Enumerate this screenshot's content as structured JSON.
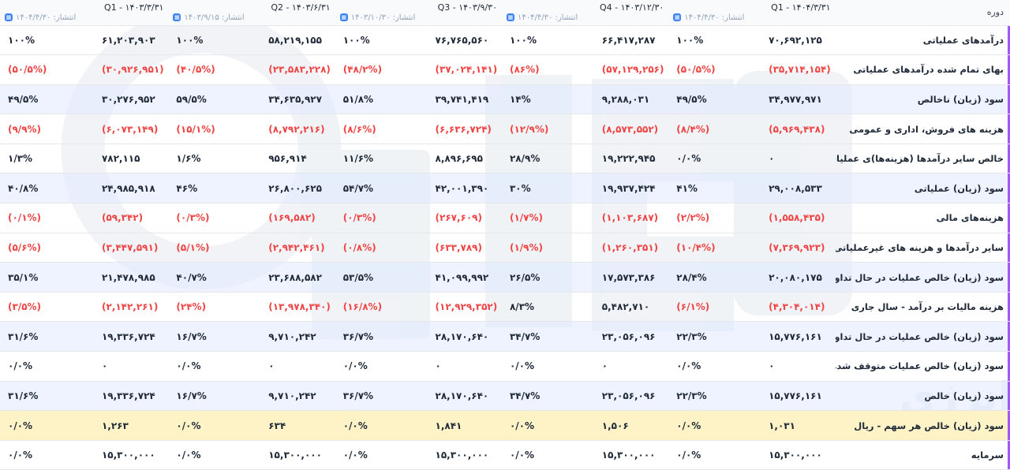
{
  "table": {
    "header_label": "دوره",
    "periods": [
      {
        "title": "Q1 - ۱۴۰۴/۳/۳۱",
        "published": "انتشار: ۱۴۰۴/۴/۳۰"
      },
      {
        "title": "Q4 - ۱۴۰۳/۱۲/۳۰",
        "published": "انتشار: ۱۴۰۴/۴/۳۰"
      },
      {
        "title": "Q3 - ۱۴۰۳/۹/۳۰",
        "published": "انتشار: ۱۴۰۳/۱۰/۳۰"
      },
      {
        "title": "Q2 - ۱۴۰۳/۶/۳۱",
        "published": "انتشار: ۱۴۰۳/۹/۱۵"
      },
      {
        "title": "Q1 - ۱۴۰۳/۳/۳۱",
        "published": "انتشار: ۱۴۰۴/۴/۳۰"
      }
    ],
    "rows": [
      {
        "label": "درآمدهای عملیاتی",
        "shade": "none",
        "cells": [
          {
            "v": "۷۰,۶۹۲,۱۲۵",
            "p": "۱۰۰%",
            "neg": false
          },
          {
            "v": "۶۶,۴۱۷,۲۸۷",
            "p": "۱۰۰%",
            "neg": false
          },
          {
            "v": "۷۶,۷۶۵,۵۶۰",
            "p": "۱۰۰%",
            "neg": false
          },
          {
            "v": "۵۸,۲۱۹,۱۵۵",
            "p": "۱۰۰%",
            "neg": false
          },
          {
            "v": "۶۱,۲۰۳,۹۰۳",
            "p": "۱۰۰%",
            "neg": false
          }
        ]
      },
      {
        "label": "بهای تمام شده درآمدهای عملیاتی",
        "shade": "none",
        "cells": [
          {
            "v": "(۳۵,۷۱۴,۱۵۴)",
            "p": "(۵۰/۵%)",
            "neg": true
          },
          {
            "v": "(۵۷,۱۲۹,۲۵۶)",
            "p": "(۸۶%)",
            "neg": true
          },
          {
            "v": "(۳۷,۰۲۴,۱۴۱)",
            "p": "(۴۸/۲%)",
            "neg": true
          },
          {
            "v": "(۲۳,۵۸۳,۲۲۸)",
            "p": "(۴۰/۵%)",
            "neg": true
          },
          {
            "v": "(۳۰,۹۲۶,۹۵۱)",
            "p": "(۵۰/۵%)",
            "neg": true
          }
        ]
      },
      {
        "label": "سود (زیان) ناخالص",
        "shade": "blue",
        "cells": [
          {
            "v": "۳۴,۹۷۷,۹۷۱",
            "p": "۴۹/۵%",
            "neg": false
          },
          {
            "v": "۹,۲۸۸,۰۳۱",
            "p": "۱۴%",
            "neg": false
          },
          {
            "v": "۳۹,۷۴۱,۴۱۹",
            "p": "۵۱/۸%",
            "neg": false
          },
          {
            "v": "۳۴,۶۳۵,۹۲۷",
            "p": "۵۹/۵%",
            "neg": false
          },
          {
            "v": "۳۰,۲۷۶,۹۵۲",
            "p": "۴۹/۵%",
            "neg": false
          }
        ]
      },
      {
        "label": "هزینه های فروش، اداری و عمومی",
        "shade": "none",
        "cells": [
          {
            "v": "(۵,۹۶۹,۴۳۸)",
            "p": "(۸/۴%)",
            "neg": true
          },
          {
            "v": "(۸,۵۷۳,۵۵۲)",
            "p": "(۱۲/۹%)",
            "neg": true
          },
          {
            "v": "(۶,۶۳۶,۷۲۴)",
            "p": "(۸/۶%)",
            "neg": true
          },
          {
            "v": "(۸,۷۹۲,۲۱۶)",
            "p": "(۱۵/۱%)",
            "neg": true
          },
          {
            "v": "(۶,۰۷۳,۱۴۹)",
            "p": "(۹/۹%)",
            "neg": true
          }
        ]
      },
      {
        "label": "خالص سایر درآمدها (هزینه‌ها)ی عملیاتی",
        "shade": "none",
        "cells": [
          {
            "v": "۰",
            "p": "۰/۰%",
            "neg": false
          },
          {
            "v": "۱۹,۲۲۲,۹۴۵",
            "p": "۲۸/۹%",
            "neg": false
          },
          {
            "v": "۸,۸۹۶,۶۹۵",
            "p": "۱۱/۶%",
            "neg": false
          },
          {
            "v": "۹۵۶,۹۱۴",
            "p": "۱/۶%",
            "neg": false
          },
          {
            "v": "۷۸۲,۱۱۵",
            "p": "۱/۳%",
            "neg": false
          }
        ]
      },
      {
        "label": "سود (زیان) عملیاتی",
        "shade": "blue",
        "cells": [
          {
            "v": "۲۹,۰۰۸,۵۳۳",
            "p": "۴۱%",
            "neg": false
          },
          {
            "v": "۱۹,۹۳۷,۴۲۴",
            "p": "۳۰%",
            "neg": false
          },
          {
            "v": "۴۲,۰۰۱,۳۹۰",
            "p": "۵۴/۷%",
            "neg": false
          },
          {
            "v": "۲۶,۸۰۰,۶۲۵",
            "p": "۴۶%",
            "neg": false
          },
          {
            "v": "۲۴,۹۸۵,۹۱۸",
            "p": "۴۰/۸%",
            "neg": false
          }
        ]
      },
      {
        "label": "هزینه‌های مالی",
        "shade": "none",
        "cells": [
          {
            "v": "(۱,۵۵۸,۴۳۵)",
            "p": "(۲/۲%)",
            "neg": true
          },
          {
            "v": "(۱,۱۰۳,۶۸۷)",
            "p": "(۱/۷%)",
            "neg": true
          },
          {
            "v": "(۲۶۷,۶۰۹)",
            "p": "(۰/۳%)",
            "neg": true
          },
          {
            "v": "(۱۶۹,۵۸۲)",
            "p": "(۰/۳%)",
            "neg": true
          },
          {
            "v": "(۵۹,۳۴۲)",
            "p": "(۰/۱%)",
            "neg": true
          }
        ]
      },
      {
        "label": "سایر درآمدها و هزینه های غیرعملیاتی",
        "shade": "none",
        "cells": [
          {
            "v": "(۷,۳۶۹,۹۲۳)",
            "p": "(۱۰/۴%)",
            "neg": true
          },
          {
            "v": "(۱,۲۶۰,۳۵۱)",
            "p": "(۱/۹%)",
            "neg": true
          },
          {
            "v": "(۶۳۳,۷۸۹)",
            "p": "(۰/۸%)",
            "neg": true
          },
          {
            "v": "(۲,۹۴۲,۴۶۱)",
            "p": "(۵/۱%)",
            "neg": true
          },
          {
            "v": "(۳,۴۴۷,۵۹۱)",
            "p": "(۵/۶%)",
            "neg": true
          }
        ]
      },
      {
        "label": "سود (زیان) خالص عملیات در حال تداوم قبل از مالیات",
        "shade": "blue",
        "cells": [
          {
            "v": "۲۰,۰۸۰,۱۷۵",
            "p": "۲۸/۴%",
            "neg": false
          },
          {
            "v": "۱۷,۵۷۳,۳۸۶",
            "p": "۲۶/۵%",
            "neg": false
          },
          {
            "v": "۴۱,۰۹۹,۹۹۲",
            "p": "۵۳/۵%",
            "neg": false
          },
          {
            "v": "۲۳,۶۸۸,۵۸۲",
            "p": "۴۰/۷%",
            "neg": false
          },
          {
            "v": "۲۱,۴۷۸,۹۸۵",
            "p": "۳۵/۱%",
            "neg": false
          }
        ]
      },
      {
        "label": "هزینه مالیات بر درآمد - سال جاری",
        "shade": "none",
        "cells": [
          {
            "v": "(۴,۳۰۴,۰۱۴)",
            "p": "(۶/۱%)",
            "neg": true
          },
          {
            "v": "۵,۴۸۲,۷۱۰",
            "p": "۸/۳%",
            "neg": false
          },
          {
            "v": "(۱۲,۹۲۹,۳۵۲)",
            "p": "(۱۶/۸%)",
            "neg": true
          },
          {
            "v": "(۱۳,۹۷۸,۳۴۰)",
            "p": "(۲۴%)",
            "neg": true
          },
          {
            "v": "(۲,۱۴۲,۲۶۱)",
            "p": "(۳/۵%)",
            "neg": true
          }
        ]
      },
      {
        "label": "سود (زیان) خالص عملیات در حال تداوم",
        "shade": "blue",
        "cells": [
          {
            "v": "۱۵,۷۷۶,۱۶۱",
            "p": "۲۲/۳%",
            "neg": false
          },
          {
            "v": "۲۳,۰۵۶,۰۹۶",
            "p": "۳۴/۷%",
            "neg": false
          },
          {
            "v": "۲۸,۱۷۰,۶۴۰",
            "p": "۳۶/۷%",
            "neg": false
          },
          {
            "v": "۹,۷۱۰,۲۴۲",
            "p": "۱۶/۷%",
            "neg": false
          },
          {
            "v": "۱۹,۳۳۶,۷۲۴",
            "p": "۳۱/۶%",
            "neg": false
          }
        ]
      },
      {
        "label": "سود (زیان) خالص عملیات متوقف شده",
        "shade": "none",
        "cells": [
          {
            "v": "۰",
            "p": "۰/۰%",
            "neg": false
          },
          {
            "v": "۰",
            "p": "۰/۰%",
            "neg": false
          },
          {
            "v": "۰",
            "p": "۰/۰%",
            "neg": false
          },
          {
            "v": "۰",
            "p": "۰/۰%",
            "neg": false
          },
          {
            "v": "۰",
            "p": "۰/۰%",
            "neg": false
          }
        ]
      },
      {
        "label": "سود (زیان) خالص",
        "shade": "blue",
        "cells": [
          {
            "v": "۱۵,۷۷۶,۱۶۱",
            "p": "۲۲/۳%",
            "neg": false
          },
          {
            "v": "۲۳,۰۵۶,۰۹۶",
            "p": "۳۴/۷%",
            "neg": false
          },
          {
            "v": "۲۸,۱۷۰,۶۴۰",
            "p": "۳۶/۷%",
            "neg": false
          },
          {
            "v": "۹,۷۱۰,۲۴۲",
            "p": "۱۶/۷%",
            "neg": false
          },
          {
            "v": "۱۹,۳۳۶,۷۲۴",
            "p": "۳۱/۶%",
            "neg": false
          }
        ]
      },
      {
        "label": "سود (زیان) خالص هر سهم - ریال",
        "shade": "yellow",
        "cells": [
          {
            "v": "۱,۰۳۱",
            "p": "۰/۰%",
            "neg": false
          },
          {
            "v": "۱,۵۰۶",
            "p": "۰/۰%",
            "neg": false
          },
          {
            "v": "۱,۸۴۱",
            "p": "۰/۰%",
            "neg": false
          },
          {
            "v": "۶۳۴",
            "p": "۰/۰%",
            "neg": false
          },
          {
            "v": "۱,۲۶۳",
            "p": "۰/۰%",
            "neg": false
          }
        ]
      },
      {
        "label": "سرمایه",
        "shade": "none",
        "cells": [
          {
            "v": "۱۵,۳۰۰,۰۰۰",
            "p": "۰/۰%",
            "neg": false
          },
          {
            "v": "۱۵,۳۰۰,۰۰۰",
            "p": "۰/۰%",
            "neg": false
          },
          {
            "v": "۱۵,۳۰۰,۰۰۰",
            "p": "۰/۰%",
            "neg": false
          },
          {
            "v": "۱۵,۳۰۰,۰۰۰",
            "p": "۰/۰%",
            "neg": false
          },
          {
            "v": "۱۵,۳۰۰,۰۰۰",
            "p": "۰/۰%",
            "neg": false
          }
        ]
      }
    ]
  },
  "watermark": {
    "text": "کارگزار بورس اوراق بهادار، کالا و انرژی"
  },
  "colors": {
    "negative": "#ef4444",
    "row_blue": "#e8efff",
    "row_yellow": "#fdf3c7",
    "label_accent": "#a855f7",
    "icon_blue": "#3b82f6"
  },
  "icons": {
    "published_icon": "calendar-icon"
  }
}
